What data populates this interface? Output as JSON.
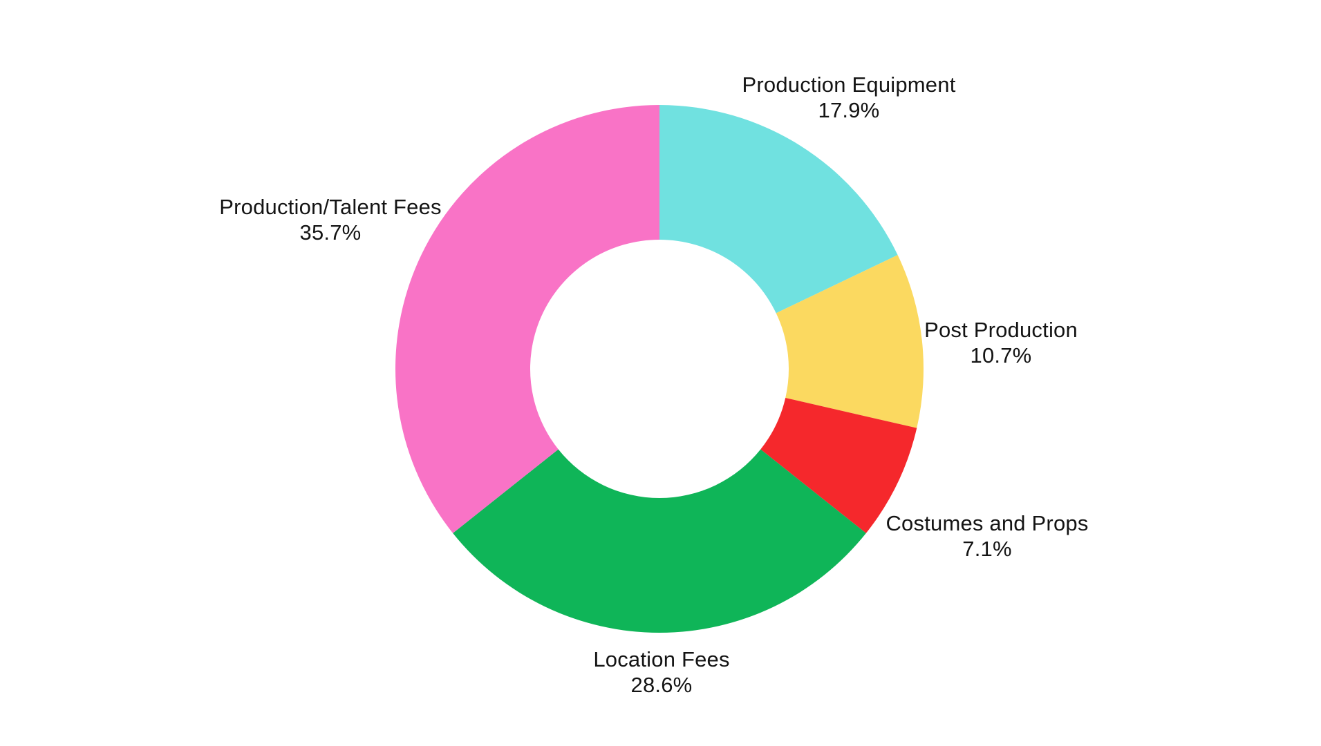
{
  "chart_data": {
    "type": "pie",
    "subtype": "donut",
    "title": "",
    "labels": [
      "Production Equipment",
      "Post Production",
      "Costumes and Props",
      "Location Fees",
      "Production/Talent Fees"
    ],
    "values": [
      17.9,
      10.7,
      7.1,
      28.6,
      35.7
    ],
    "percent_labels": [
      "17.9%",
      "10.7%",
      "7.1%",
      "28.6%",
      "35.7%"
    ],
    "colors": [
      "#70E1E0",
      "#FBD960",
      "#F5282C",
      "#0FB558",
      "#F973C6"
    ],
    "hole": 0.49,
    "start_angle_deg": 0,
    "direction": "clockwise",
    "legend": "none",
    "grid": false,
    "label_position": "outside",
    "background_color": "#ffffff",
    "text_color": "#141414"
  }
}
